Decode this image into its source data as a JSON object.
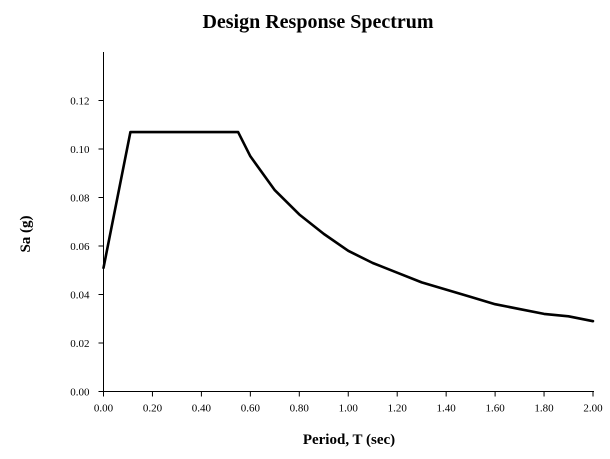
{
  "chart_data": {
    "type": "line",
    "title": "Design Response Spectrum",
    "xlabel": "Period,  T (sec)",
    "ylabel": "Sa (g)",
    "xlim": [
      0,
      2.0
    ],
    "ylim": [
      0,
      0.14
    ],
    "x_ticks": [
      0,
      0.2,
      0.4,
      0.6,
      0.8,
      1.0,
      1.2,
      1.4,
      1.6,
      1.8,
      2.0
    ],
    "x_tick_labels": [
      "0.00",
      "0.20",
      "0.40",
      "0.60",
      "0.80",
      "1.00",
      "1.20",
      "1.40",
      "1.60",
      "1.80",
      "2.00"
    ],
    "y_ticks": [
      0,
      0.02,
      0.04,
      0.06,
      0.08,
      0.1,
      0.12
    ],
    "y_tick_labels": [
      "0.00",
      "0.02",
      "0.04",
      "0.06",
      "0.08",
      "0.10",
      "0.12"
    ],
    "grid": false,
    "legend": "none",
    "series": [
      {
        "color": "#000000",
        "x": [
          0.0,
          0.11,
          0.55,
          0.6,
          0.7,
          0.8,
          0.9,
          1.0,
          1.1,
          1.2,
          1.3,
          1.4,
          1.5,
          1.6,
          1.7,
          1.8,
          1.9,
          2.0
        ],
        "y": [
          0.051,
          0.107,
          0.107,
          0.097,
          0.083,
          0.073,
          0.065,
          0.058,
          0.053,
          0.049,
          0.045,
          0.042,
          0.039,
          0.036,
          0.034,
          0.032,
          0.031,
          0.029
        ]
      }
    ]
  }
}
